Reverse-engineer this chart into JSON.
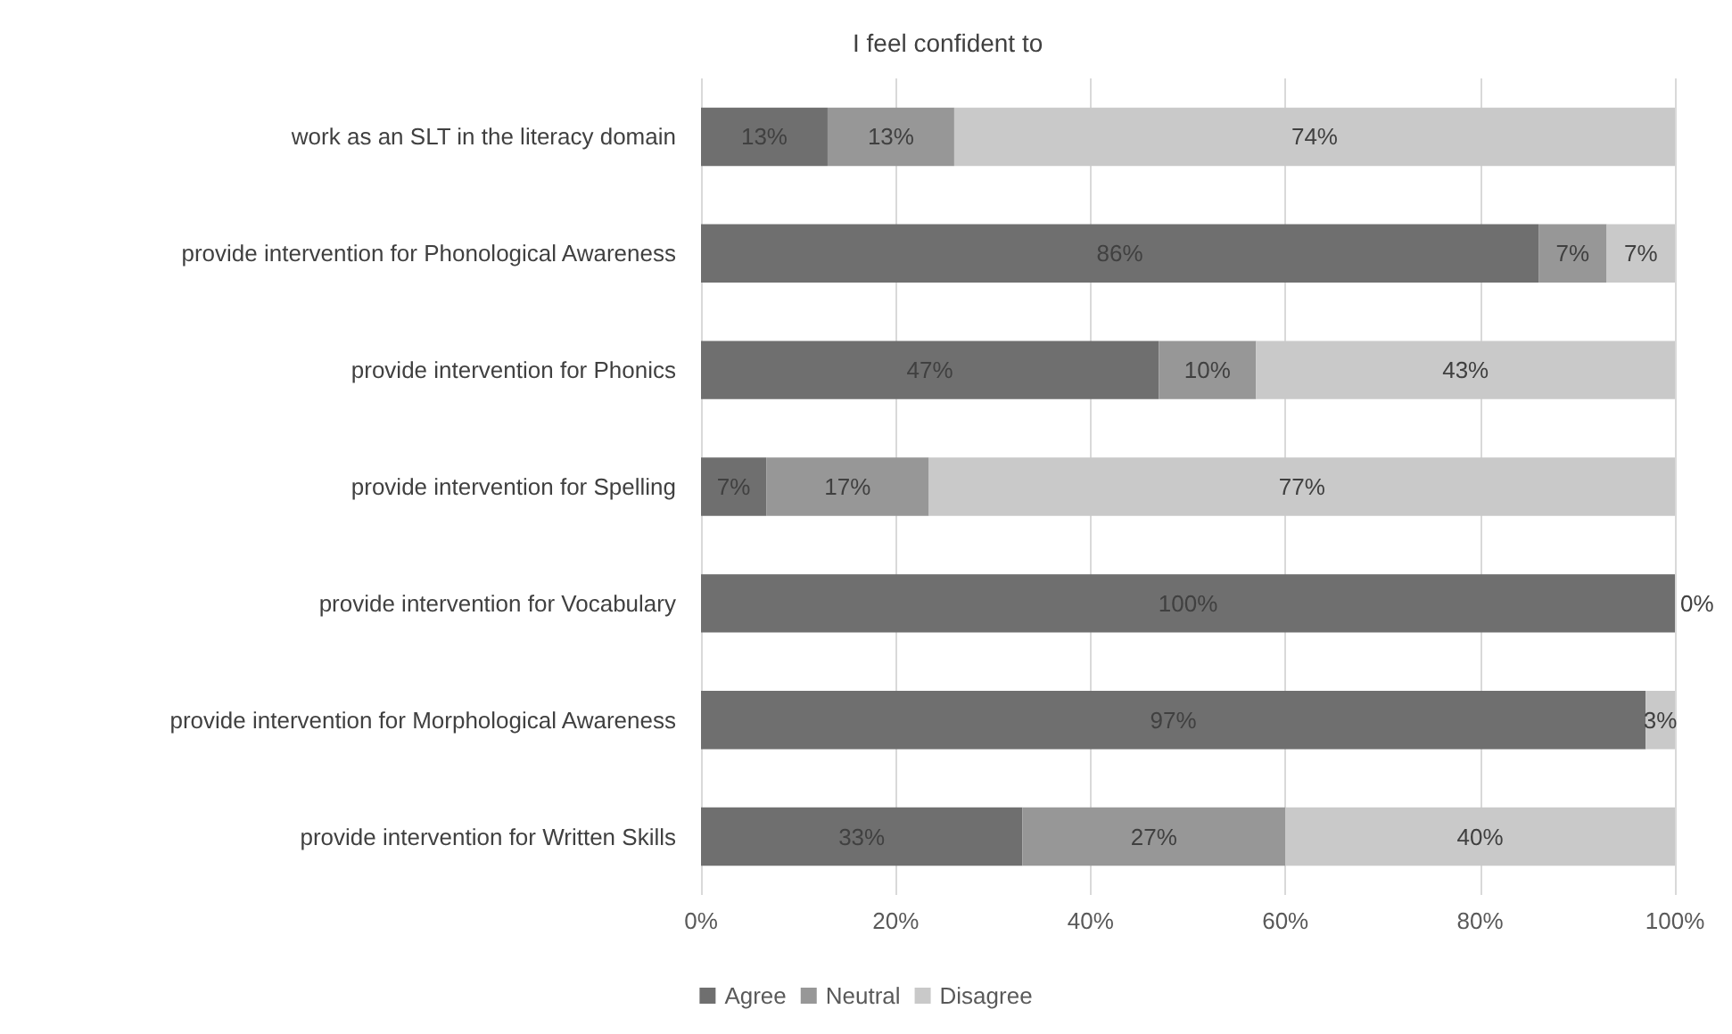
{
  "chart_data": {
    "type": "bar",
    "orientation": "horizontal",
    "stacked": true,
    "title": "I feel confident to",
    "categories": [
      "work as an SLT in the literacy domain",
      "provide intervention for Phonological Awareness",
      "provide intervention for Phonics",
      "provide intervention for Spelling",
      "provide intervention for Vocabulary",
      "provide intervention for Morphological Awareness",
      "provide intervention for Written Skills"
    ],
    "series": [
      {
        "name": "Agree",
        "color": "#6f6f6f",
        "values": [
          13,
          86,
          47,
          6.7,
          100,
          97,
          33
        ],
        "value_labels": [
          "13%",
          "86%",
          "47%",
          "7%",
          "100%",
          "97%",
          "33%"
        ]
      },
      {
        "name": "Neutral",
        "color": "#979797",
        "values": [
          13,
          7,
          10,
          16.7,
          null,
          null,
          27
        ],
        "value_labels": [
          "13%",
          "7%",
          "10%",
          "17%",
          null,
          null,
          "27%"
        ]
      },
      {
        "name": "Disagree",
        "color": "#c9c9c9",
        "values": [
          74,
          7,
          43,
          76.6,
          0,
          3,
          40
        ],
        "value_labels": [
          "74%",
          "7%",
          "43%",
          "77%",
          "0%",
          "3%",
          "40%"
        ]
      }
    ],
    "xlim": [
      0,
      100
    ],
    "xticks": [
      {
        "value": 0,
        "label": "0%"
      },
      {
        "value": 20,
        "label": "20%"
      },
      {
        "value": 40,
        "label": "40%"
      },
      {
        "value": 60,
        "label": "60%"
      },
      {
        "value": 80,
        "label": "80%"
      },
      {
        "value": 100,
        "label": "100%"
      }
    ],
    "grid": "x",
    "legend": "bottom"
  }
}
